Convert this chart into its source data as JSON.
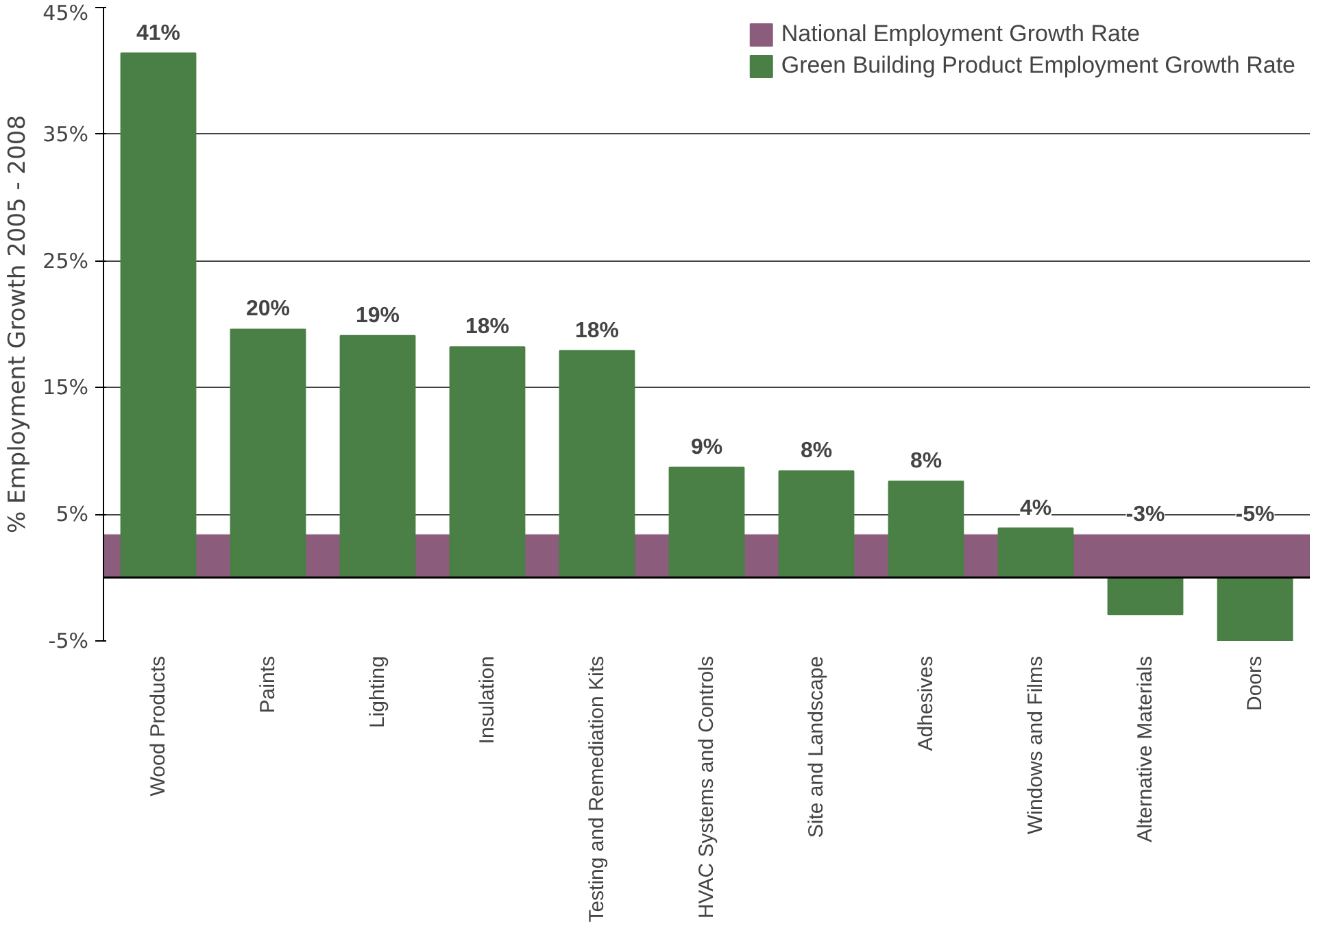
{
  "chart_data": {
    "type": "bar",
    "ylabel": "% Employment Growth 2005 - 2008",
    "categories": [
      "Wood Products",
      "Paints",
      "Lighting",
      "Insulation",
      "Testing and Remediation Kits",
      "HVAC Systems and Controls",
      "Site and Landscape",
      "Adhesives",
      "Windows and Films",
      "Alternative Materials",
      "Doors"
    ],
    "series": [
      {
        "name": "Green Building Product Employment Growth Rate",
        "color": "#4a7f45",
        "values": [
          41.4,
          19.6,
          19.1,
          18.2,
          17.9,
          8.7,
          8.4,
          7.6,
          3.9,
          -2.9,
          -5.0
        ],
        "value_labels": [
          "41%",
          "20%",
          "19%",
          "18%",
          "18%",
          "9%",
          "8%",
          "8%",
          "4%",
          "-3%",
          "-5%"
        ]
      }
    ],
    "ylim": [
      -5,
      45
    ],
    "yticks": [
      {
        "value": -5,
        "label": "-5%"
      },
      {
        "value": 5,
        "label": "5%"
      },
      {
        "value": 15,
        "label": "15%"
      },
      {
        "value": 25,
        "label": "25%"
      },
      {
        "value": 35,
        "label": "35%"
      },
      {
        "value": 45,
        "label": "45%"
      }
    ],
    "bands": [
      {
        "axis": "y",
        "from": 0,
        "to": 3.4,
        "label": "National Employment Growth Rate",
        "color": "#8c5c7c"
      }
    ],
    "grid": "y",
    "legend": "top right"
  }
}
